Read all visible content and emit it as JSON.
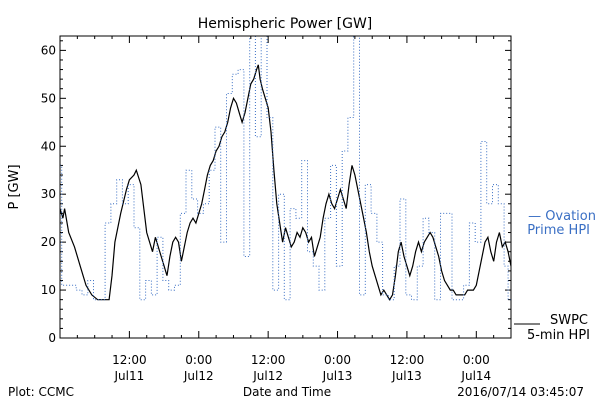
{
  "chart_data": {
    "type": "line",
    "title": "Hemispheric Power [GW]",
    "xlabel": "Date and Time",
    "ylabel": "P [GW]",
    "ylim": [
      0,
      63
    ],
    "yticks": [
      0,
      10,
      20,
      30,
      40,
      50,
      60
    ],
    "xlim_hours": [
      0,
      78
    ],
    "xticks": [
      {
        "time": "12:00",
        "date": "Jul11"
      },
      {
        "time": "0:00",
        "date": "Jul12"
      },
      {
        "time": "12:00",
        "date": "Jul12"
      },
      {
        "time": "0:00",
        "date": "Jul13"
      },
      {
        "time": "12:00",
        "date": "Jul13"
      },
      {
        "time": "0:00",
        "date": "Jul14"
      }
    ],
    "grid": false,
    "series": [
      {
        "name": "SWPC 5-min HPI",
        "legend_lines": [
          "SWPC",
          "5-min HPI"
        ],
        "color": "#000000",
        "style": "solid",
        "points": [
          [
            0,
            27
          ],
          [
            0.5,
            25
          ],
          [
            0.8,
            27
          ],
          [
            1.5,
            22
          ],
          [
            2.5,
            19
          ],
          [
            3.5,
            15
          ],
          [
            4.5,
            11
          ],
          [
            5.5,
            9
          ],
          [
            6.5,
            8
          ],
          [
            7.5,
            8
          ],
          [
            8.5,
            8
          ],
          [
            9,
            13
          ],
          [
            9.5,
            20
          ],
          [
            10.5,
            26
          ],
          [
            11.5,
            31
          ],
          [
            12,
            33
          ],
          [
            12.8,
            34
          ],
          [
            13.2,
            35
          ],
          [
            14,
            32
          ],
          [
            14.5,
            27
          ],
          [
            15,
            22
          ],
          [
            16,
            18
          ],
          [
            16.5,
            21
          ],
          [
            17,
            19
          ],
          [
            17.5,
            17
          ],
          [
            18,
            15
          ],
          [
            18.5,
            13
          ],
          [
            19,
            17
          ],
          [
            19.5,
            20
          ],
          [
            20,
            21
          ],
          [
            20.5,
            20
          ],
          [
            21,
            16
          ],
          [
            21.5,
            19
          ],
          [
            22,
            22
          ],
          [
            22.5,
            24
          ],
          [
            23,
            25
          ],
          [
            23.5,
            24
          ],
          [
            24,
            26
          ],
          [
            24.5,
            28
          ],
          [
            25,
            31
          ],
          [
            25.5,
            34
          ],
          [
            26,
            36
          ],
          [
            26.5,
            37
          ],
          [
            27,
            39
          ],
          [
            27.5,
            40
          ],
          [
            28,
            42
          ],
          [
            28.5,
            43
          ],
          [
            29,
            45
          ],
          [
            29.5,
            48
          ],
          [
            30,
            50
          ],
          [
            30.5,
            49
          ],
          [
            31,
            47
          ],
          [
            31.5,
            45
          ],
          [
            32,
            47
          ],
          [
            32.5,
            50
          ],
          [
            33,
            53
          ],
          [
            33.5,
            54
          ],
          [
            34,
            56
          ],
          [
            34.3,
            57
          ],
          [
            34.6,
            54
          ],
          [
            35,
            52
          ],
          [
            35.5,
            50
          ],
          [
            36,
            48
          ],
          [
            36.5,
            43
          ],
          [
            37,
            35
          ],
          [
            37.5,
            28
          ],
          [
            38,
            24
          ],
          [
            38.5,
            20
          ],
          [
            39,
            23
          ],
          [
            39.5,
            21
          ],
          [
            40,
            19
          ],
          [
            40.5,
            20
          ],
          [
            41,
            22
          ],
          [
            41.5,
            21
          ],
          [
            42,
            23
          ],
          [
            42.5,
            22
          ],
          [
            43,
            20
          ],
          [
            43.5,
            21
          ],
          [
            44,
            17
          ],
          [
            44.5,
            19
          ],
          [
            45,
            21
          ],
          [
            45.5,
            25
          ],
          [
            46,
            28
          ],
          [
            46.5,
            30
          ],
          [
            47,
            28
          ],
          [
            47.5,
            27
          ],
          [
            48,
            29
          ],
          [
            48.5,
            31
          ],
          [
            49,
            29
          ],
          [
            49.5,
            27
          ],
          [
            50,
            32
          ],
          [
            50.5,
            36
          ],
          [
            51,
            34
          ],
          [
            51.5,
            31
          ],
          [
            52,
            28
          ],
          [
            52.5,
            25
          ],
          [
            53,
            22
          ],
          [
            53.5,
            18
          ],
          [
            54,
            15
          ],
          [
            54.5,
            13
          ],
          [
            55,
            11
          ],
          [
            55.5,
            9
          ],
          [
            56,
            10
          ],
          [
            56.5,
            9
          ],
          [
            57,
            8
          ],
          [
            57.5,
            9
          ],
          [
            58,
            13
          ],
          [
            58.5,
            18
          ],
          [
            59,
            20
          ],
          [
            59.5,
            17
          ],
          [
            60,
            15
          ],
          [
            60.5,
            13
          ],
          [
            61,
            15
          ],
          [
            61.5,
            18
          ],
          [
            62,
            20
          ],
          [
            62.5,
            18
          ],
          [
            63,
            20
          ],
          [
            63.5,
            21
          ],
          [
            64,
            22
          ],
          [
            64.5,
            21
          ],
          [
            65,
            19
          ],
          [
            65.5,
            17
          ],
          [
            66,
            14
          ],
          [
            66.5,
            12
          ],
          [
            67,
            11
          ],
          [
            67.5,
            10
          ],
          [
            68,
            10
          ],
          [
            68.5,
            9
          ],
          [
            69,
            9
          ],
          [
            69.5,
            9
          ],
          [
            70,
            9
          ],
          [
            70.5,
            10
          ],
          [
            71,
            10
          ],
          [
            71.5,
            10
          ],
          [
            72,
            11
          ],
          [
            72.5,
            14
          ],
          [
            73,
            17
          ],
          [
            73.5,
            20
          ],
          [
            74,
            21
          ],
          [
            74.5,
            18
          ],
          [
            75,
            16
          ],
          [
            75.5,
            20
          ],
          [
            76,
            22
          ],
          [
            76.5,
            19
          ],
          [
            77,
            20
          ],
          [
            77.5,
            18
          ],
          [
            78,
            15
          ]
        ]
      },
      {
        "name": "Ovation Prime HPI",
        "legend_lines": [
          "Ovation",
          "Prime HPI"
        ],
        "color": "#3a6fc4",
        "style": "dotted-step",
        "points": [
          [
            0,
            36
          ],
          [
            0.3,
            11
          ],
          [
            1.8,
            11
          ],
          [
            2.8,
            10
          ],
          [
            3.8,
            9
          ],
          [
            4.8,
            12
          ],
          [
            5.8,
            8
          ],
          [
            6.8,
            8
          ],
          [
            7.8,
            24
          ],
          [
            8.8,
            28
          ],
          [
            9.8,
            33
          ],
          [
            10.8,
            28
          ],
          [
            11.8,
            32
          ],
          [
            12.8,
            23
          ],
          [
            13.8,
            8
          ],
          [
            14.8,
            12
          ],
          [
            15.8,
            9
          ],
          [
            16.8,
            21
          ],
          [
            17.8,
            12
          ],
          [
            18.8,
            10
          ],
          [
            19.8,
            11
          ],
          [
            20.8,
            26
          ],
          [
            21.8,
            35
          ],
          [
            22.8,
            29
          ],
          [
            23.8,
            26
          ],
          [
            24.8,
            28
          ],
          [
            25.8,
            35
          ],
          [
            26.8,
            44
          ],
          [
            27.8,
            20
          ],
          [
            28.8,
            51
          ],
          [
            29.8,
            55
          ],
          [
            30.8,
            56
          ],
          [
            31.8,
            17
          ],
          [
            32.8,
            63
          ],
          [
            33.8,
            42
          ],
          [
            34.8,
            63
          ],
          [
            35.8,
            46
          ],
          [
            36.8,
            10
          ],
          [
            37.8,
            30
          ],
          [
            38.8,
            8
          ],
          [
            39.8,
            27
          ],
          [
            40.8,
            25
          ],
          [
            41.8,
            37
          ],
          [
            42.8,
            18
          ],
          [
            43.8,
            15
          ],
          [
            44.8,
            10
          ],
          [
            45.8,
            25
          ],
          [
            46.8,
            36
          ],
          [
            47.8,
            15
          ],
          [
            48.8,
            39
          ],
          [
            49.8,
            46
          ],
          [
            50.8,
            63
          ],
          [
            51.8,
            9
          ],
          [
            52.8,
            32
          ],
          [
            53.8,
            26
          ],
          [
            54.8,
            20
          ],
          [
            55.8,
            9
          ],
          [
            56.8,
            8
          ],
          [
            57.8,
            15
          ],
          [
            58.8,
            29
          ],
          [
            59.8,
            9
          ],
          [
            60.8,
            8
          ],
          [
            61.8,
            15
          ],
          [
            62.8,
            25
          ],
          [
            63.8,
            22
          ],
          [
            64.8,
            8
          ],
          [
            65.8,
            26
          ],
          [
            66.8,
            26
          ],
          [
            67.8,
            8
          ],
          [
            68.8,
            8
          ],
          [
            69.8,
            11
          ],
          [
            70.8,
            24
          ],
          [
            71.8,
            20
          ],
          [
            72.8,
            41
          ],
          [
            73.8,
            28
          ],
          [
            74.8,
            32
          ],
          [
            75.8,
            28
          ],
          [
            76.8,
            15
          ],
          [
            77.5,
            8
          ],
          [
            78,
            8
          ]
        ]
      }
    ]
  },
  "footer": {
    "left": "Plot: CCMC",
    "center": "Date and Time",
    "right": "2016/07/14 03:45:07"
  }
}
